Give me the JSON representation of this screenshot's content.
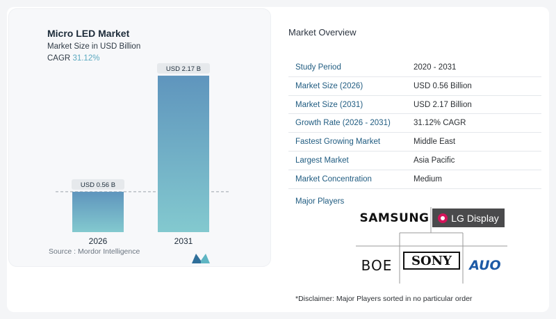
{
  "chart_data": {
    "type": "bar",
    "title": "Micro LED Market",
    "subtitle": "Market Size in USD Billion",
    "cagr_label": "CAGR",
    "cagr_value": "31.12%",
    "categories": [
      "2026",
      "2031"
    ],
    "values": [
      0.56,
      2.17
    ],
    "value_labels": [
      "USD 0.56 B",
      "USD 2.17 B"
    ],
    "ylim": [
      0,
      2.4
    ],
    "grid": false,
    "bar_color_top": "#5f95bd",
    "bar_color_bottom": "#83c9cf",
    "source": "Source : Mordor Intelligence"
  },
  "overview": {
    "title": "Market Overview",
    "rows": [
      {
        "label": "Study Period",
        "value": "2020 - 2031"
      },
      {
        "label": "Market Size (2026)",
        "value": "USD 0.56 Billion"
      },
      {
        "label": "Market Size (2031)",
        "value": "USD 2.17 Billion"
      },
      {
        "label": "Growth Rate (2026 - 2031)",
        "value": "31.12% CAGR"
      },
      {
        "label": "Fastest Growing Market",
        "value": "Middle East"
      },
      {
        "label": "Largest Market",
        "value": "Asia Pacific"
      },
      {
        "label": "Market Concentration",
        "value": "Medium"
      }
    ]
  },
  "players": {
    "title": "Major Players",
    "logos": [
      "SAMSUNG",
      "LG Display",
      "BOE",
      "SONY",
      "AUO"
    ]
  },
  "disclaimer": "*Disclaimer: Major Players sorted in no particular order",
  "colors": {
    "accent": "#5ba9c0",
    "label_blue": "#1f5b80"
  }
}
